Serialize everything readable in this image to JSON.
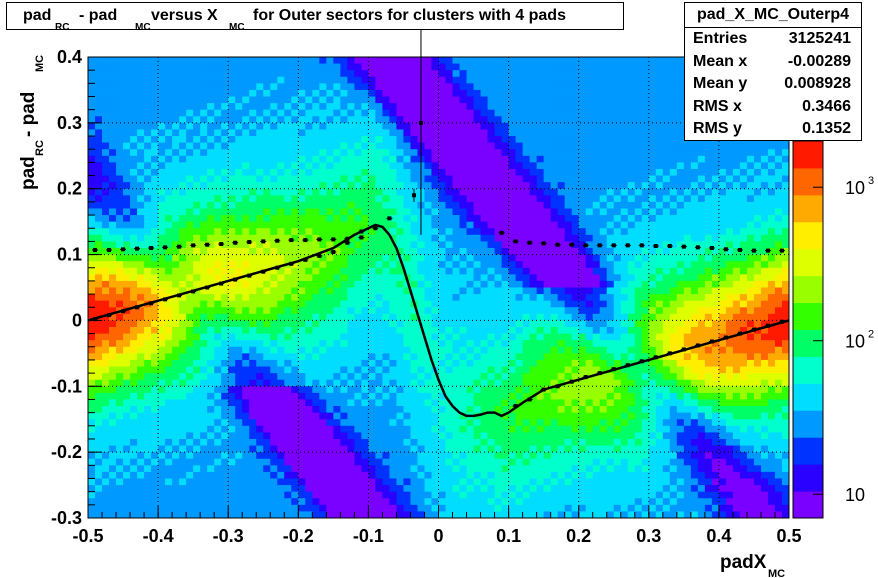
{
  "title": {
    "main": "pad",
    "sub_rc": "RC",
    "mid": " - pad",
    "sub_mc": "MC",
    "mid2": "  versus X",
    "sub_mc2": "MC",
    "tail": "  for Outer sectors for clusters with 4 pads"
  },
  "stats": {
    "name": "pad_X_MC_Outerp4",
    "rows": [
      {
        "label": "Entries",
        "value": "3125241"
      },
      {
        "label": "Mean x",
        "value": "-0.00289"
      },
      {
        "label": "Mean y",
        "value": "0.008928"
      },
      {
        "label": "RMS x",
        "value": "0.3466"
      },
      {
        "label": "RMS y",
        "value": "0.1352"
      }
    ]
  },
  "chart_data": {
    "type": "heatmap",
    "histogram_name": "pad_X_MC_Outerp4",
    "xlabel": {
      "main": "padX",
      "sub": "MC"
    },
    "ylabel": {
      "main": "pad",
      "sub_rc": "RC",
      "mid": " - pad",
      "sub_mc": "MC"
    },
    "xlim": [
      -0.5,
      0.5
    ],
    "ylim": [
      -0.3,
      0.4
    ],
    "x_ticks": [
      "-0.5",
      "-0.4",
      "-0.3",
      "-0.2",
      "-0.1",
      "0",
      "0.1",
      "0.2",
      "0.3",
      "0.4",
      "0.5"
    ],
    "y_ticks": [
      "-0.3",
      "-0.2",
      "-0.1",
      "0",
      "0.1",
      "0.2",
      "0.3",
      "0.4"
    ],
    "grid": true,
    "color_scale": {
      "log": true,
      "range": [
        7,
        2000
      ],
      "labels": [
        {
          "base": "10",
          "exp": "",
          "value": 10
        },
        {
          "base": "10",
          "exp": "2",
          "value": 100
        },
        {
          "base": "10",
          "exp": "3",
          "value": 1000
        }
      ]
    },
    "colors": {
      "palette": [
        "#7a00ff",
        "#2a00ff",
        "#0033ff",
        "#0099ff",
        "#00ddff",
        "#00ffcc",
        "#00ff66",
        "#33ff00",
        "#99ff00",
        "#ddff00",
        "#ffee00",
        "#ffaa00",
        "#ff6600",
        "#ff1a00"
      ],
      "fit_curve": "#000000",
      "profile_points": "#000000"
    },
    "fit_curve": {
      "x": [
        -0.5,
        -0.45,
        -0.4,
        -0.35,
        -0.3,
        -0.25,
        -0.2,
        -0.15,
        -0.12,
        -0.1,
        -0.09,
        -0.08,
        -0.07,
        -0.06,
        -0.05,
        -0.04,
        -0.03,
        -0.02,
        -0.01,
        0,
        0.01,
        0.02,
        0.03,
        0.04,
        0.05,
        0.06,
        0.07,
        0.08,
        0.09,
        0.1,
        0.12,
        0.15,
        0.2,
        0.25,
        0.3,
        0.35,
        0.4,
        0.45,
        0.5
      ],
      "y": [
        0,
        0.015,
        0.03,
        0.045,
        0.06,
        0.075,
        0.09,
        0.11,
        0.13,
        0.14,
        0.145,
        0.142,
        0.13,
        0.11,
        0.08,
        0.045,
        0.01,
        -0.025,
        -0.06,
        -0.09,
        -0.115,
        -0.13,
        -0.14,
        -0.145,
        -0.145,
        -0.143,
        -0.14,
        -0.14,
        -0.145,
        -0.14,
        -0.125,
        -0.105,
        -0.09,
        -0.075,
        -0.06,
        -0.045,
        -0.03,
        -0.015,
        0
      ]
    },
    "profile_upper": {
      "x": [
        -0.49,
        -0.47,
        -0.45,
        -0.43,
        -0.41,
        -0.39,
        -0.37,
        -0.35,
        -0.33,
        -0.31,
        -0.29,
        -0.27,
        -0.25,
        -0.23,
        -0.21,
        -0.19,
        -0.17,
        -0.15,
        -0.13,
        -0.11,
        -0.09,
        -0.07,
        0.09,
        0.11,
        0.13,
        0.15,
        0.17,
        0.19,
        0.21,
        0.23,
        0.25,
        0.27,
        0.29,
        0.31,
        0.33,
        0.35,
        0.37,
        0.39,
        0.41,
        0.43,
        0.45,
        0.47,
        0.49
      ],
      "y": [
        0.107,
        0.107,
        0.108,
        0.109,
        0.11,
        0.111,
        0.112,
        0.114,
        0.115,
        0.116,
        0.118,
        0.119,
        0.12,
        0.121,
        0.122,
        0.122,
        0.123,
        0.123,
        0.124,
        0.126,
        0.14,
        0.155,
        0.133,
        0.12,
        0.118,
        0.117,
        0.115,
        0.115,
        0.114,
        0.114,
        0.114,
        0.114,
        0.114,
        0.113,
        0.113,
        0.112,
        0.111,
        0.11,
        0.108,
        0.107,
        0.106,
        0.106,
        0.106
      ]
    },
    "profile_lower": {
      "x": [
        -0.49,
        -0.47,
        -0.45,
        -0.43,
        -0.41,
        -0.39,
        -0.37,
        -0.35,
        -0.33,
        -0.31,
        -0.29,
        -0.27,
        -0.25,
        -0.23,
        -0.21,
        -0.19,
        -0.17,
        -0.15,
        -0.13,
        -0.11,
        0.11,
        0.13,
        0.15,
        0.17,
        0.19,
        0.21,
        0.23,
        0.25,
        0.27,
        0.29,
        0.31,
        0.33,
        0.35,
        0.37,
        0.39,
        0.41,
        0.43,
        0.45,
        0.47,
        0.49
      ],
      "y": [
        0.002,
        0.008,
        0.014,
        0.02,
        0.026,
        0.032,
        0.038,
        0.044,
        0.05,
        0.056,
        0.062,
        0.068,
        0.074,
        0.08,
        0.086,
        0.092,
        0.098,
        0.104,
        0.118,
        0.135,
        -0.13,
        -0.12,
        -0.105,
        -0.1,
        -0.093,
        -0.086,
        -0.08,
        -0.074,
        -0.068,
        -0.062,
        -0.056,
        -0.05,
        -0.044,
        -0.038,
        -0.032,
        -0.026,
        -0.02,
        -0.014,
        -0.008,
        -0.002
      ]
    },
    "outlier_points": [
      {
        "x": -0.025,
        "y": 0.3,
        "err": 0.17
      },
      {
        "x": -0.035,
        "y": 0.19,
        "err": 0.01
      }
    ]
  }
}
